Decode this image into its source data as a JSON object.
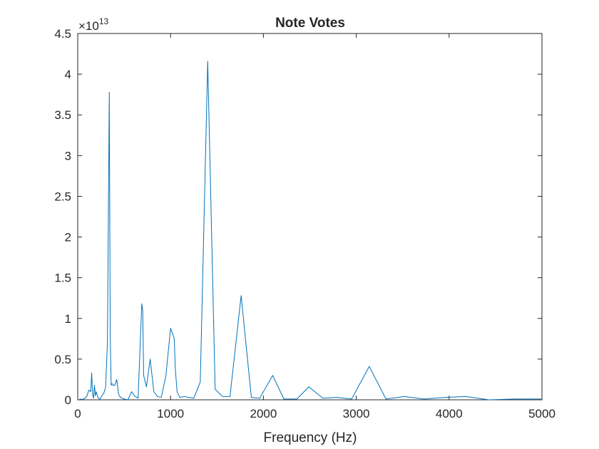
{
  "chart_data": {
    "type": "line",
    "title": "Note Votes",
    "xlabel": "Frequency (Hz)",
    "ylabel": "",
    "xlim": [
      0,
      5000
    ],
    "ylim": [
      0,
      4.5
    ],
    "y_multiplier_base": "×10",
    "y_multiplier_exponent": "13",
    "grid": false,
    "line_color": "#0072bd",
    "x_ticks": [
      0,
      1000,
      2000,
      3000,
      4000,
      5000
    ],
    "x_tick_labels": [
      "0",
      "1000",
      "2000",
      "3000",
      "4000",
      "5000"
    ],
    "y_ticks": [
      0,
      0.5,
      1,
      1.5,
      2,
      2.5,
      3,
      3.5,
      4,
      4.5
    ],
    "y_tick_labels": [
      "0",
      "0.5",
      "1",
      "1.5",
      "2",
      "2.5",
      "3",
      "3.5",
      "4",
      "4.5"
    ],
    "series": [
      {
        "x": [
          20,
          40,
          60,
          80,
          100,
          120,
          140,
          150,
          160,
          170,
          180,
          190,
          200,
          220,
          240,
          260,
          280,
          300,
          320,
          340,
          350,
          360,
          370,
          380,
          400,
          420,
          440,
          460,
          500,
          540,
          580,
          610,
          650,
          690,
          700,
          710,
          740,
          780,
          800,
          820,
          860,
          900,
          950,
          1000,
          1040,
          1050,
          1070,
          1100,
          1150,
          1200,
          1250,
          1320,
          1400,
          1480,
          1560,
          1640,
          1760,
          1870,
          1960,
          2100,
          2220,
          2360,
          2490,
          2640,
          2790,
          2950,
          3140,
          3320,
          3520,
          3730,
          3950,
          4180,
          4430,
          4700,
          5000
        ],
        "y": [
          0.01,
          0.005,
          0.01,
          0.02,
          0.05,
          0.12,
          0.1,
          0.33,
          0.07,
          0.02,
          0.18,
          0.05,
          0.1,
          0.02,
          0.01,
          0.05,
          0.08,
          0.15,
          0.7,
          3.78,
          0.8,
          0.18,
          0.2,
          0.18,
          0.18,
          0.25,
          0.07,
          0.03,
          0.01,
          0.0,
          0.1,
          0.05,
          0.02,
          1.18,
          1.1,
          0.3,
          0.16,
          0.5,
          0.3,
          0.1,
          0.04,
          0.03,
          0.3,
          0.88,
          0.75,
          0.4,
          0.1,
          0.03,
          0.04,
          0.03,
          0.02,
          0.22,
          4.16,
          0.13,
          0.04,
          0.04,
          1.28,
          0.03,
          0.02,
          0.3,
          0.01,
          0.01,
          0.16,
          0.02,
          0.03,
          0.01,
          0.41,
          0.01,
          0.04,
          0.01,
          0.03,
          0.04,
          0.0,
          0.01,
          0.01
        ]
      }
    ]
  }
}
